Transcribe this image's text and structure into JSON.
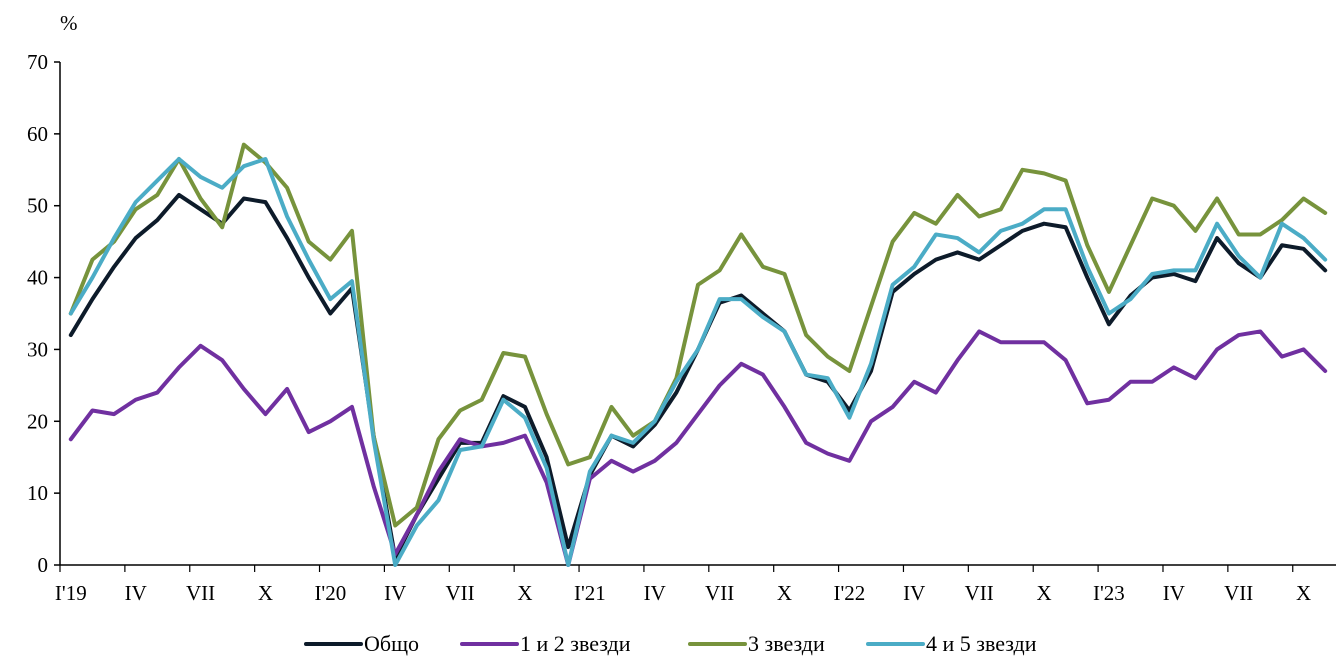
{
  "chart_data": {
    "type": "line",
    "unit_label": "%",
    "ylim": [
      0,
      70
    ],
    "yticks": [
      0,
      10,
      20,
      30,
      40,
      50,
      60,
      70
    ],
    "xtick_labels": [
      "I'19",
      "IV",
      "VII",
      "X",
      "I'20",
      "IV",
      "VII",
      "X",
      "I'21",
      "IV",
      "VII",
      "X",
      "I'22",
      "IV",
      "VII",
      "X",
      "I'23",
      "IV",
      "VII",
      "X"
    ],
    "grid": false,
    "legend_position": "bottom",
    "series": [
      {
        "name": "Общо",
        "color": "#0d1b2a",
        "values": [
          32.0,
          37.0,
          41.5,
          45.5,
          48.0,
          51.5,
          49.5,
          47.5,
          51.0,
          50.5,
          45.5,
          40.0,
          35.0,
          38.5,
          18.0,
          1.0,
          7.0,
          12.0,
          17.0,
          17.0,
          23.5,
          22.0,
          15.0,
          2.5,
          12.5,
          18.0,
          16.5,
          19.5,
          24.0,
          30.0,
          36.5,
          37.5,
          35.0,
          32.5,
          26.5,
          25.5,
          21.5,
          27.0,
          38.0,
          40.5,
          42.5,
          43.5,
          42.5,
          44.5,
          46.5,
          47.5,
          47.0,
          40.0,
          33.5,
          37.5,
          40.0,
          40.5,
          39.5,
          45.5,
          42.0,
          40.0,
          44.5,
          44.0,
          41.0
        ]
      },
      {
        "name": "1 и 2 звезди",
        "color": "#7030a0",
        "values": [
          17.5,
          21.5,
          21.0,
          23.0,
          24.0,
          27.5,
          30.5,
          28.5,
          24.5,
          21.0,
          24.5,
          18.5,
          20.0,
          22.0,
          11.0,
          1.5,
          7.0,
          13.0,
          17.5,
          16.5,
          17.0,
          18.0,
          11.5,
          0.0,
          12.0,
          14.5,
          13.0,
          14.5,
          17.0,
          21.0,
          25.0,
          28.0,
          26.5,
          22.0,
          17.0,
          15.5,
          14.5,
          20.0,
          22.0,
          25.5,
          24.0,
          28.5,
          32.5,
          31.0,
          31.0,
          31.0,
          28.5,
          22.5,
          23.0,
          25.5,
          25.5,
          27.5,
          26.0,
          30.0,
          32.0,
          32.5,
          29.0,
          30.0,
          27.0
        ]
      },
      {
        "name": "3 звезди",
        "color": "#77933c",
        "values": [
          35.0,
          42.5,
          45.0,
          49.5,
          51.5,
          56.5,
          51.0,
          47.0,
          58.5,
          56.0,
          52.5,
          45.0,
          42.5,
          46.5,
          18.0,
          5.5,
          8.0,
          17.5,
          21.5,
          23.0,
          29.5,
          29.0,
          21.0,
          14.0,
          15.0,
          22.0,
          18.0,
          20.0,
          26.0,
          39.0,
          41.0,
          46.0,
          41.5,
          40.5,
          32.0,
          29.0,
          27.0,
          36.0,
          45.0,
          49.0,
          47.5,
          51.5,
          48.5,
          49.5,
          55.0,
          54.5,
          53.5,
          44.5,
          38.0,
          44.5,
          51.0,
          50.0,
          46.5,
          51.0,
          46.0,
          46.0,
          48.0,
          51.0,
          49.0
        ]
      },
      {
        "name": "4 и 5 звезди",
        "color": "#4bacc6",
        "values": [
          35.0,
          40.0,
          45.5,
          50.5,
          53.5,
          56.5,
          54.0,
          52.5,
          55.5,
          56.5,
          48.5,
          42.5,
          37.0,
          39.5,
          17.5,
          0.0,
          5.5,
          9.0,
          16.0,
          16.5,
          23.0,
          20.5,
          13.5,
          0.0,
          13.0,
          18.0,
          17.0,
          20.0,
          25.5,
          30.0,
          37.0,
          37.0,
          34.5,
          32.5,
          26.5,
          26.0,
          20.5,
          28.0,
          39.0,
          41.5,
          46.0,
          45.5,
          43.5,
          46.5,
          47.5,
          49.5,
          49.5,
          41.5,
          35.0,
          37.0,
          40.5,
          41.0,
          41.0,
          47.5,
          43.0,
          40.0,
          47.5,
          45.5,
          42.5
        ]
      }
    ]
  }
}
